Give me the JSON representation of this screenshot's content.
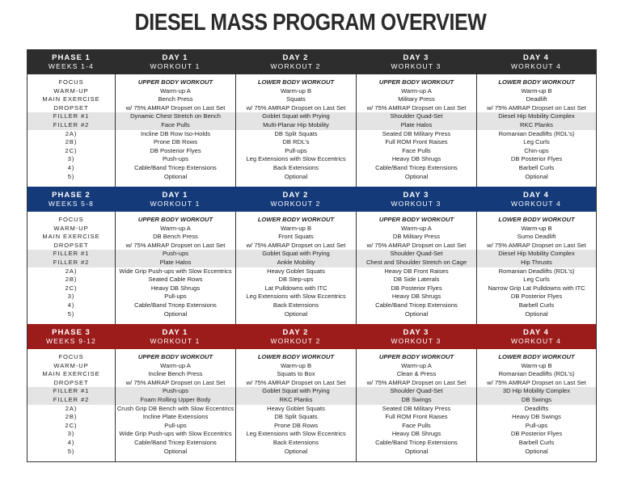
{
  "title": "DIESEL MASS PROGRAM OVERVIEW",
  "labels": [
    "FOCUS",
    "WARM-UP",
    "MAIN EXERCISE",
    "DROPSET",
    "FILLER #1",
    "FILLER #2",
    "2A)",
    "2B)",
    "2C)",
    "3)",
    "4)",
    "5)"
  ],
  "colors": {
    "phase1": "#2d2d2d",
    "phase2": "#143a7a",
    "phase3": "#9c1b1b",
    "shade": "#e4e4e4"
  },
  "phases": [
    {
      "title": "PHASE 1",
      "weeks": "WEEKS 1-4",
      "days": [
        {
          "day": "DAY 1",
          "workout": "WORKOUT 1",
          "rows": [
            "UPPER BODY WORKOUT",
            "Warm-up A",
            "Bench Press",
            "w/ 75% AMRAP Dropset on Last Set",
            "Dynamic Chest Stretch on Bench",
            "Face Pulls",
            "Incline DB Row Iso-Holds",
            "Prone DB Rows",
            "DB Posterior Flyes",
            "Push-ups",
            "Cable/Band Tricep Extensions",
            "Optional"
          ]
        },
        {
          "day": "DAY 2",
          "workout": "WORKOUT 2",
          "rows": [
            "LOWER BODY WORKOUT",
            "Warm-up B",
            "Squats",
            "w/ 75% AMRAP Dropset on Last Set",
            "Goblet Squat with Prying",
            "Multi-Planar Hip Mobility",
            "DB Split Squats",
            "DB RDL's",
            "Pull-ups",
            "Leg Extensions with Slow Eccentrics",
            "Back Extensions",
            "Optional"
          ]
        },
        {
          "day": "DAY 3",
          "workout": "WORKOUT 3",
          "rows": [
            "UPPER BODY WORKOUT",
            "Warm-up A",
            "Military Press",
            "w/ 75% AMRAP Dropset on Last Set",
            "Shoulder Quad-Set",
            "Plate Halos",
            "Seated DB Military Press",
            "Full ROM Front Raises",
            "Face Pulls",
            "Heavy DB Shrugs",
            "Cable/Band Tricep Extensions",
            "Optional"
          ]
        },
        {
          "day": "DAY 4",
          "workout": "WORKOUT 4",
          "rows": [
            "LOWER BODY WORKOUT",
            "Warm-up B",
            "Deadlift",
            "w/ 75% AMRAP Dropset on Last Set",
            "Diesel Hip Mobility Complex",
            "RKC Planks",
            "Romanian Deadlifts (RDL's)",
            "Leg Curls",
            "Chin-ups",
            "DB Posterior Flyes",
            "Barbell Curls",
            "Optional"
          ]
        }
      ]
    },
    {
      "title": "PHASE 2",
      "weeks": "WEEKS 5-8",
      "days": [
        {
          "day": "DAY 1",
          "workout": "WORKOUT 1",
          "rows": [
            "UPPER BODY WORKOUT",
            "Warm-up A",
            "DB Bench Press",
            "w/ 75% AMRAP Dropset on Last Set",
            "Push-ups",
            "Plate Halos",
            "Wide Grip Push-ups with Slow Eccentrics",
            "Seated Cable Rows",
            "Heavy DB Shrugs",
            "Pull-ups",
            "Cable/Band Tricep Extensions",
            "Optional"
          ]
        },
        {
          "day": "DAY 2",
          "workout": "WORKOUT 2",
          "rows": [
            "LOWER BODY WORKOUT",
            "Warm-up B",
            "Front Squats",
            "w/ 75% AMRAP Dropset on Last Set",
            "Goblet Squat with Prying",
            "Ankle Mobility",
            "Heavy Goblet Squats",
            "DB Step-ups",
            "Lat Pulldowns with ITC",
            "Leg Extensions with Slow Eccentrics",
            "Back Extensions",
            "Optional"
          ]
        },
        {
          "day": "DAY 3",
          "workout": "WORKOUT 3",
          "rows": [
            "UPPER BODY WORKOUT",
            "Warm-up A",
            "DB Military Press",
            "w/ 75% AMRAP Dropset on Last Set",
            "Shoulder Quad-Set",
            "Chest and Shoulder Stretch on Cage",
            "Heavy DB Front Raises",
            "DB Side Laterals",
            "DB Posterior Flyes",
            "Heavy DB Shrugs",
            "Cable/Band Tricep Extensions",
            "Optional"
          ]
        },
        {
          "day": "DAY 4",
          "workout": "WORKOUT 4",
          "rows": [
            "LOWER BODY WORKOUT",
            "Warm-up B",
            "Sumo Deadlift",
            "w/ 75% AMRAP Dropset on Last Set",
            "Diesel Hip Mobility Complex",
            "Hip Thrusts",
            "Romanian Deadlifts (RDL's)",
            "Leg Curls",
            "Narrow Grip Lat Pulldowns with ITC",
            "DB Posterior Flyes",
            "Barbell Curls",
            "Optional"
          ]
        }
      ]
    },
    {
      "title": "PHASE 3",
      "weeks": "WEEKS 9-12",
      "days": [
        {
          "day": "DAY 1",
          "workout": "WORKOUT 1",
          "rows": [
            "UPPER BODY WORKOUT",
            "Warm-up A",
            "Incline Bench Press",
            "w/ 75% AMRAP Dropset on Last Set",
            "Push-ups",
            "Foam Rolling Upper Body",
            "Crush Grip DB Bench with Slow Eccentrics",
            "Incline Plate Extensions",
            "Pull-ups",
            "Wide Grip Push-ups with Slow Eccentrics",
            "Cable/Band Tricep Extensions",
            "Optional"
          ]
        },
        {
          "day": "DAY 2",
          "workout": "WORKOUT 2",
          "rows": [
            "LOWER BODY WORKOUT",
            "Warm-up B",
            "Squats to Box",
            "w/ 75% AMRAP Dropset on Last Set",
            "Goblet Squat with Prying",
            "RKC Planks",
            "Heavy Goblet Squats",
            "DB Split Squats",
            "Prone DB Rows",
            "Leg Extensions with Slow Eccentrics",
            "Back Extensions",
            "Optional"
          ]
        },
        {
          "day": "DAY 3",
          "workout": "WORKOUT 3",
          "rows": [
            "UPPER BODY WORKOUT",
            "Warm-up A",
            "Clean & Press",
            "w/ 75% AMRAP Dropset on Last Set",
            "Shoulder Quad-Set",
            "DB Swings",
            "Seated DB Military Press",
            "Full ROM Front Raises",
            "Face Pulls",
            "Heavy DB Shrugs",
            "Cable/Band Tricep Extensions",
            "Optional"
          ]
        },
        {
          "day": "DAY 4",
          "workout": "WORKOUT 4",
          "rows": [
            "LOWER BODY WORKOUT",
            "Warm-up B",
            "Romanian Deadlifts (RDL's)",
            "w/ 75% AMRAP Dropset on Last Set",
            "3D Hip Mobility Complex",
            "DB Swings",
            "Deadlifts",
            "Heavy DB Swings",
            "Pull-ups",
            "DB Posterior Flyes",
            "Barbell Curls",
            "Optional"
          ]
        }
      ]
    }
  ]
}
